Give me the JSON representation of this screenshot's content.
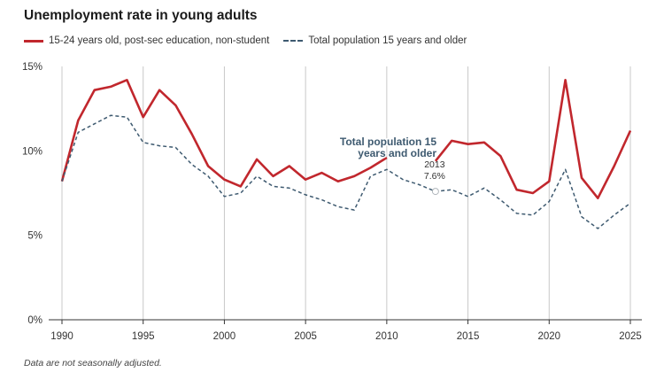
{
  "title": "Unemployment rate in young adults",
  "note": "Data are not seasonally adjusted.",
  "colors": {
    "series1": "#c1272d",
    "series2": "#3e5a70",
    "grid": "#c8c8c8",
    "axis": "#333333"
  },
  "chart_data": {
    "type": "line",
    "title": "Unemployment rate in young adults",
    "xlabel": "",
    "ylabel": "",
    "xlim": [
      1990,
      2025
    ],
    "ylim": [
      0,
      15
    ],
    "x_ticks": [
      "1990",
      "1995",
      "2000",
      "2005",
      "2010",
      "2015",
      "2020",
      "2025"
    ],
    "y_ticks": [
      "0%",
      "5%",
      "10%",
      "15%"
    ],
    "grid": "vertical",
    "legend_position": "top-left",
    "x": [
      1990,
      1991,
      1992,
      1993,
      1994,
      1995,
      1996,
      1997,
      1998,
      1999,
      2000,
      2001,
      2002,
      2003,
      2004,
      2005,
      2006,
      2007,
      2008,
      2009,
      2010,
      2011,
      2012,
      2013,
      2014,
      2015,
      2016,
      2017,
      2018,
      2019,
      2020,
      2021,
      2022,
      2023,
      2024,
      2025
    ],
    "series": [
      {
        "name": "15-24 years old, post-sec education, non-student",
        "style": "solid",
        "values": [
          8.2,
          11.8,
          13.6,
          13.8,
          14.2,
          12.0,
          13.6,
          12.7,
          11.0,
          9.1,
          8.3,
          7.9,
          9.5,
          8.5,
          9.1,
          8.3,
          8.7,
          8.2,
          8.5,
          9.0,
          9.6,
          null,
          null,
          9.4,
          10.6,
          10.4,
          10.5,
          9.7,
          7.7,
          7.5,
          8.2,
          14.2,
          8.4,
          7.2,
          9.1,
          11.2
        ]
      },
      {
        "name": "Total population 15 years and older",
        "style": "dashed",
        "values": [
          8.2,
          11.1,
          11.6,
          12.1,
          12.0,
          10.5,
          10.3,
          10.2,
          9.2,
          8.5,
          7.3,
          7.5,
          8.5,
          7.9,
          7.8,
          7.4,
          7.1,
          6.7,
          6.5,
          8.5,
          8.9,
          8.3,
          8.0,
          7.6,
          7.7,
          7.3,
          7.8,
          7.1,
          6.3,
          6.2,
          7.0,
          8.9,
          6.1,
          5.4,
          6.2,
          6.9
        ]
      }
    ],
    "annotation": {
      "label": "Total population 15 years and older",
      "point_x": "2013",
      "point_y": "7.6%",
      "x": 2013,
      "y": 7.6
    }
  }
}
